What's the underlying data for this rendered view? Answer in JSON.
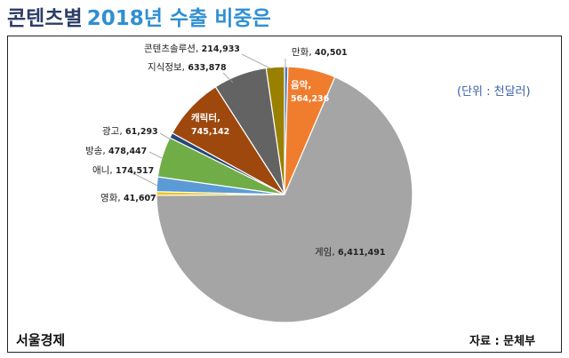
{
  "chart_data": {
    "type": "pie",
    "title_main": "콘텐츠별",
    "title_highlight": "2018년 수출 비중은",
    "unit_note": "(단위 : 천달러)",
    "slices": [
      {
        "label": "만화",
        "value": 40501,
        "display": "40,501",
        "color": "#4a78c4"
      },
      {
        "label": "음악",
        "value": 564236,
        "display": "564,236",
        "color": "#f07d2e"
      },
      {
        "label": "게임",
        "value": 6411491,
        "display": "6,411,491",
        "color": "#a5a5a5"
      },
      {
        "label": "영화",
        "value": 41607,
        "display": "41,607",
        "color": "#f2c200"
      },
      {
        "label": "애니",
        "value": 174517,
        "display": "174,517",
        "color": "#5b9bd5"
      },
      {
        "label": "방송",
        "value": 478447,
        "display": "478,447",
        "color": "#70ad47"
      },
      {
        "label": "광고",
        "value": 61293,
        "display": "61,293",
        "color": "#284778"
      },
      {
        "label": "캐릭터",
        "value": 745142,
        "display": "745,142",
        "color": "#9e480e"
      },
      {
        "label": "지식정보",
        "value": 633878,
        "display": "633,878",
        "color": "#636363"
      },
      {
        "label": "콘텐츠솔루션",
        "value": 214933,
        "display": "214,933",
        "color": "#998000"
      }
    ]
  },
  "footer": {
    "brand": "서울경제",
    "source": "자료 : 문체부"
  }
}
